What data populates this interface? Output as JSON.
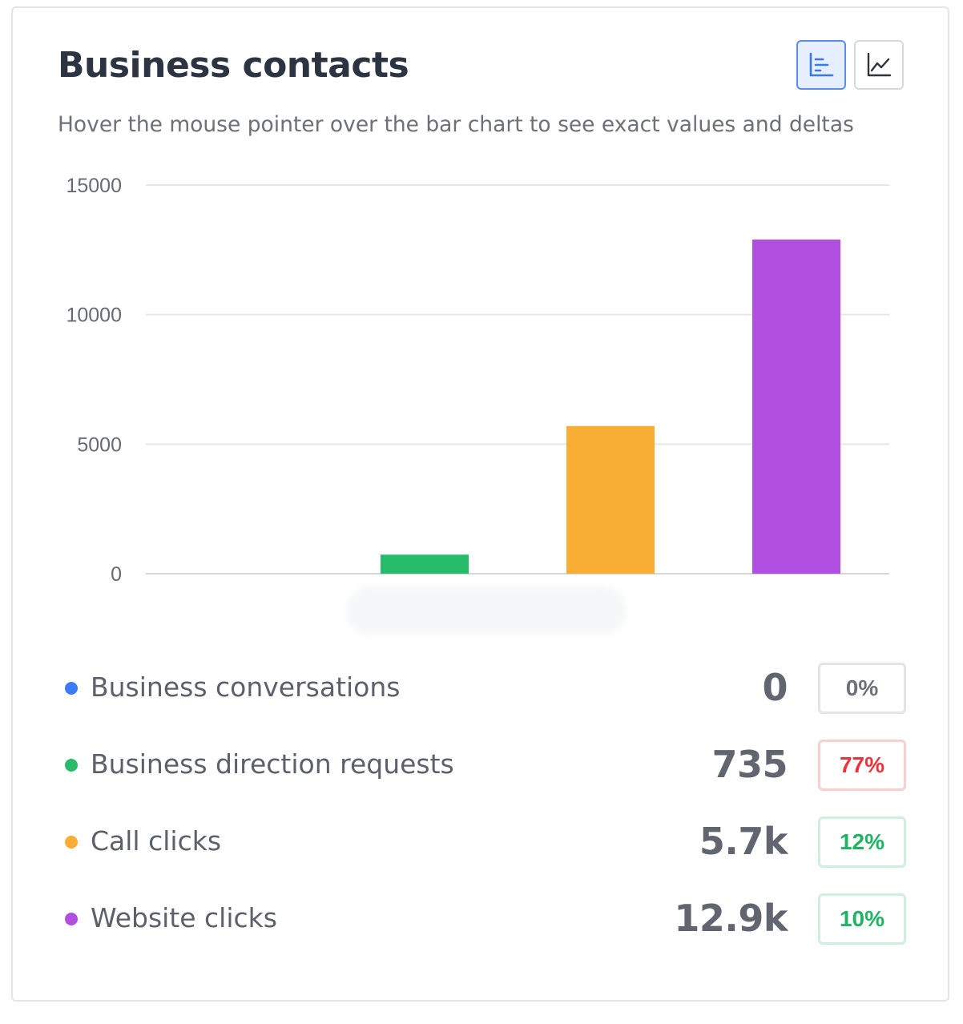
{
  "card": {
    "title": "Business contacts",
    "subtitle": "Hover the mouse pointer over the bar chart to see exact values and deltas",
    "view_toggle": {
      "bar_icon": "bar-chart-icon",
      "line_icon": "line-chart-icon",
      "active": "bar"
    }
  },
  "colors": {
    "conversations": "#3b7cf6",
    "directions": "#27bb6c",
    "calls": "#f8ad35",
    "website": "#b04fe0"
  },
  "chart_data": {
    "type": "bar",
    "title": "Business contacts",
    "xlabel": "",
    "ylabel": "",
    "ylim": [
      0,
      15000
    ],
    "yticks": [
      "15000",
      "10000",
      "5000",
      "0"
    ],
    "ytick_values": [
      15000,
      10000,
      5000,
      0
    ],
    "grid": true,
    "categories": [
      "Business conversations",
      "Business direction requests",
      "Call clicks",
      "Website clicks"
    ],
    "values": [
      0,
      735,
      5700,
      12900
    ],
    "colors": [
      "#3b7cf6",
      "#27bb6c",
      "#f8ad35",
      "#b04fe0"
    ]
  },
  "legend": [
    {
      "label": "Business conversations",
      "value": "0",
      "delta": "0%",
      "trend": "neutral",
      "color": "#3b7cf6"
    },
    {
      "label": "Business direction requests",
      "value": "735",
      "delta": "77%",
      "trend": "negative",
      "color": "#27bb6c"
    },
    {
      "label": "Call clicks",
      "value": "5.7k",
      "delta": "12%",
      "trend": "positive",
      "color": "#f8ad35"
    },
    {
      "label": "Website clicks",
      "value": "12.9k",
      "delta": "10%",
      "trend": "positive",
      "color": "#b04fe0"
    }
  ]
}
